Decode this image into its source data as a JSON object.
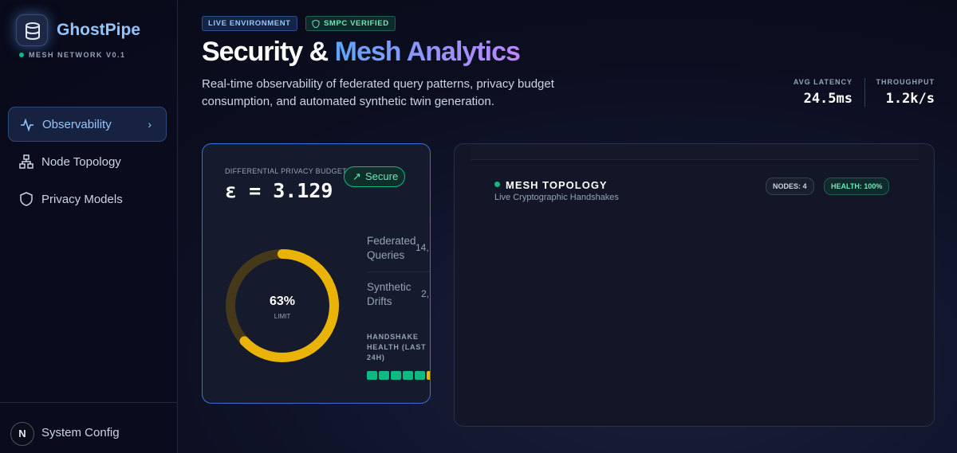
{
  "sidebar": {
    "brand": "GhostPipe",
    "subtitle": "MESH NETWORK V0.1",
    "nav": [
      "Observability",
      "Node Topology",
      "Privacy Models"
    ],
    "avatar": "N",
    "footer": "System Config"
  },
  "header": {
    "badges": [
      "LIVE ENVIRONMENT",
      "SMPC VERIFIED"
    ],
    "title_plain": "Security &",
    "title_accent": "Mesh Analytics",
    "description": "Real-time observability of federated query patterns, privacy budget consumption, and automated synthetic twin generation.",
    "stats": [
      {
        "label": "AVG LATENCY",
        "value": "24.5ms"
      },
      {
        "label": "THROUGHPUT",
        "value": "1.2k/s"
      }
    ]
  },
  "privacy_card": {
    "label": "DIFFERENTIAL PRIVACY BUDGET",
    "status": "Secure",
    "epsilon": "ε = 3.129",
    "gauge": {
      "value": 63,
      "value_label": "63%",
      "caption": "LIMIT",
      "color": "#eab308",
      "track_color": "#45391a"
    },
    "metrics": [
      {
        "label": "Federated Queries",
        "value": "14,"
      },
      {
        "label": "Synthetic Drifts",
        "value": "2,"
      }
    ],
    "health_label": "HANDSHAKE HEALTH (LAST 24H)",
    "health_segments": [
      "#10b981",
      "#10b981",
      "#10b981",
      "#10b981",
      "#10b981",
      "#eab308"
    ]
  },
  "topology": {
    "title": "MESH TOPOLOGY",
    "subtitle": "Live Cryptographic Handshakes",
    "badges": [
      "NODES: 4",
      "HEALTH: 100%"
    ]
  }
}
